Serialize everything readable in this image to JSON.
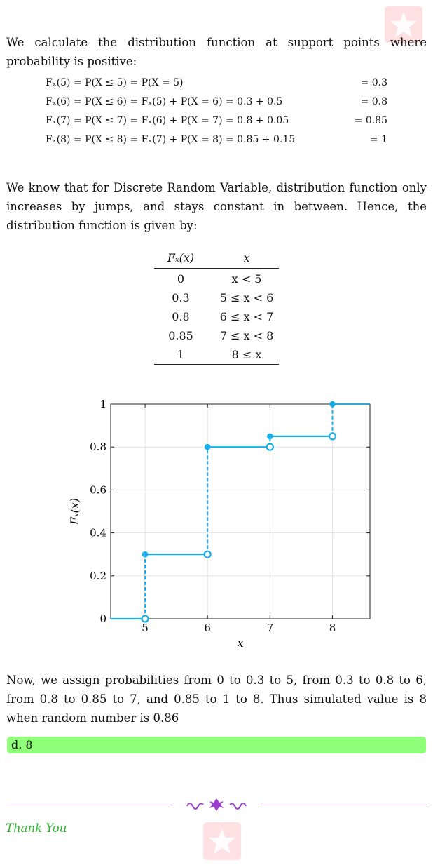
{
  "intro": "We calculate the distribution function at support points where probability is positive:",
  "equations": [
    {
      "lhs": "Fₓ(5) = P(X ≤ 5) = P(X = 5)",
      "rhs": "= 0.3"
    },
    {
      "lhs": "Fₓ(6) = P(X ≤ 6) = Fₓ(5) + P(X = 6) = 0.3 + 0.5",
      "rhs": "= 0.8"
    },
    {
      "lhs": "Fₓ(7) = P(X ≤ 7) = Fₓ(6) + P(X = 7) = 0.8 + 0.05",
      "rhs": "= 0.85"
    },
    {
      "lhs": "Fₓ(8) = P(X ≤ 8) = Fₓ(7) + P(X = 8) = 0.85 + 0.15",
      "rhs": "= 1"
    }
  ],
  "explanation": "We know that for Discrete Random Variable, distribution function only increases by jumps, and stays constant in between. Hence, the distribution function is given by:",
  "table": {
    "headers": [
      "Fₓ(x)",
      "x"
    ],
    "rows": [
      [
        "0",
        "x < 5"
      ],
      [
        "0.3",
        "5 ≤ x < 6"
      ],
      [
        "0.8",
        "6 ≤ x < 7"
      ],
      [
        "0.85",
        "7 ≤ x < 8"
      ],
      [
        "1",
        "8 ≤ x"
      ]
    ]
  },
  "chart_data": {
    "type": "line",
    "title": "",
    "xlabel": "x",
    "ylabel": "Fₓ(x)",
    "xlim": [
      4.45,
      8.6
    ],
    "ylim": [
      0,
      1
    ],
    "x_ticks": [
      "5",
      "6",
      "7",
      "8"
    ],
    "y_ticks": [
      "0",
      "0.2",
      "0.4",
      "0.6",
      "0.8",
      "1"
    ],
    "grid": true,
    "color": "#1aaee8",
    "steps": [
      {
        "x0": 4.45,
        "x1": 5,
        "y": 0
      },
      {
        "x0": 5,
        "x1": 6,
        "y": 0.3
      },
      {
        "x0": 6,
        "x1": 7,
        "y": 0.8
      },
      {
        "x0": 7,
        "x1": 8,
        "y": 0.85
      },
      {
        "x0": 8,
        "x1": 8.6,
        "y": 1
      }
    ],
    "jumps": [
      {
        "x": 5,
        "from": 0,
        "to": 0.3
      },
      {
        "x": 6,
        "from": 0.3,
        "to": 0.8
      },
      {
        "x": 7,
        "from": 0.8,
        "to": 0.85
      },
      {
        "x": 8,
        "from": 0.85,
        "to": 1
      }
    ]
  },
  "conclusion": "Now, we assign probabilities from 0 to 0.3 to 5, from 0.3 to 0.8 to 6, from 0.8 to 0.85 to 7, and 0.85 to 1 to 8. Thus simulated value is 8 when random number is 0.86",
  "answer": "d.  8",
  "thanks": "Thank You",
  "colors": {
    "answer_bg": "#8fff7a",
    "thanks": "#2fb52f",
    "ornament": "#9b3fd0",
    "logo": "#ffe0e3"
  }
}
